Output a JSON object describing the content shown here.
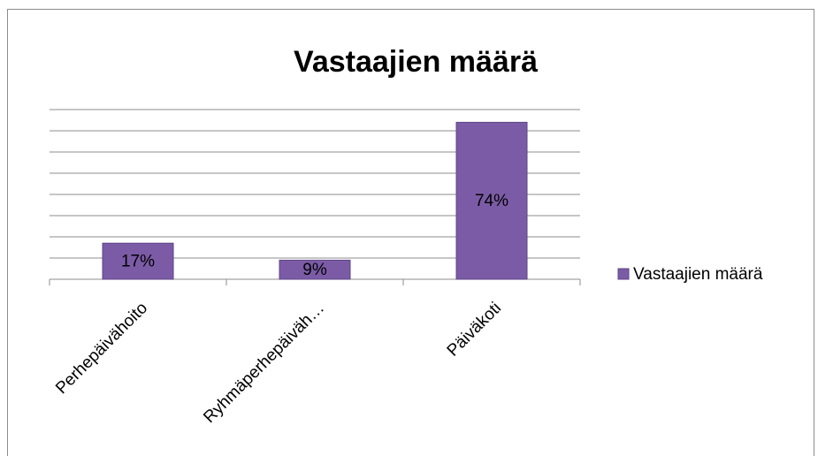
{
  "chart_data": {
    "type": "bar",
    "title": "Vastaajien määrä",
    "categories": [
      "Perhepäivähoito",
      "Ryhmäperhepäiväh…",
      "Päiväkoti"
    ],
    "series": [
      {
        "name": "Vastaajien määrä",
        "color": "#7b5ba6",
        "values": [
          17,
          9,
          74
        ],
        "value_labels": [
          "17%",
          "9%",
          "74%"
        ]
      }
    ],
    "ylim": [
      0,
      80
    ],
    "yticks": [
      0,
      10,
      20,
      30,
      40,
      50,
      60,
      70,
      80
    ],
    "grid": true,
    "legend": "right"
  }
}
